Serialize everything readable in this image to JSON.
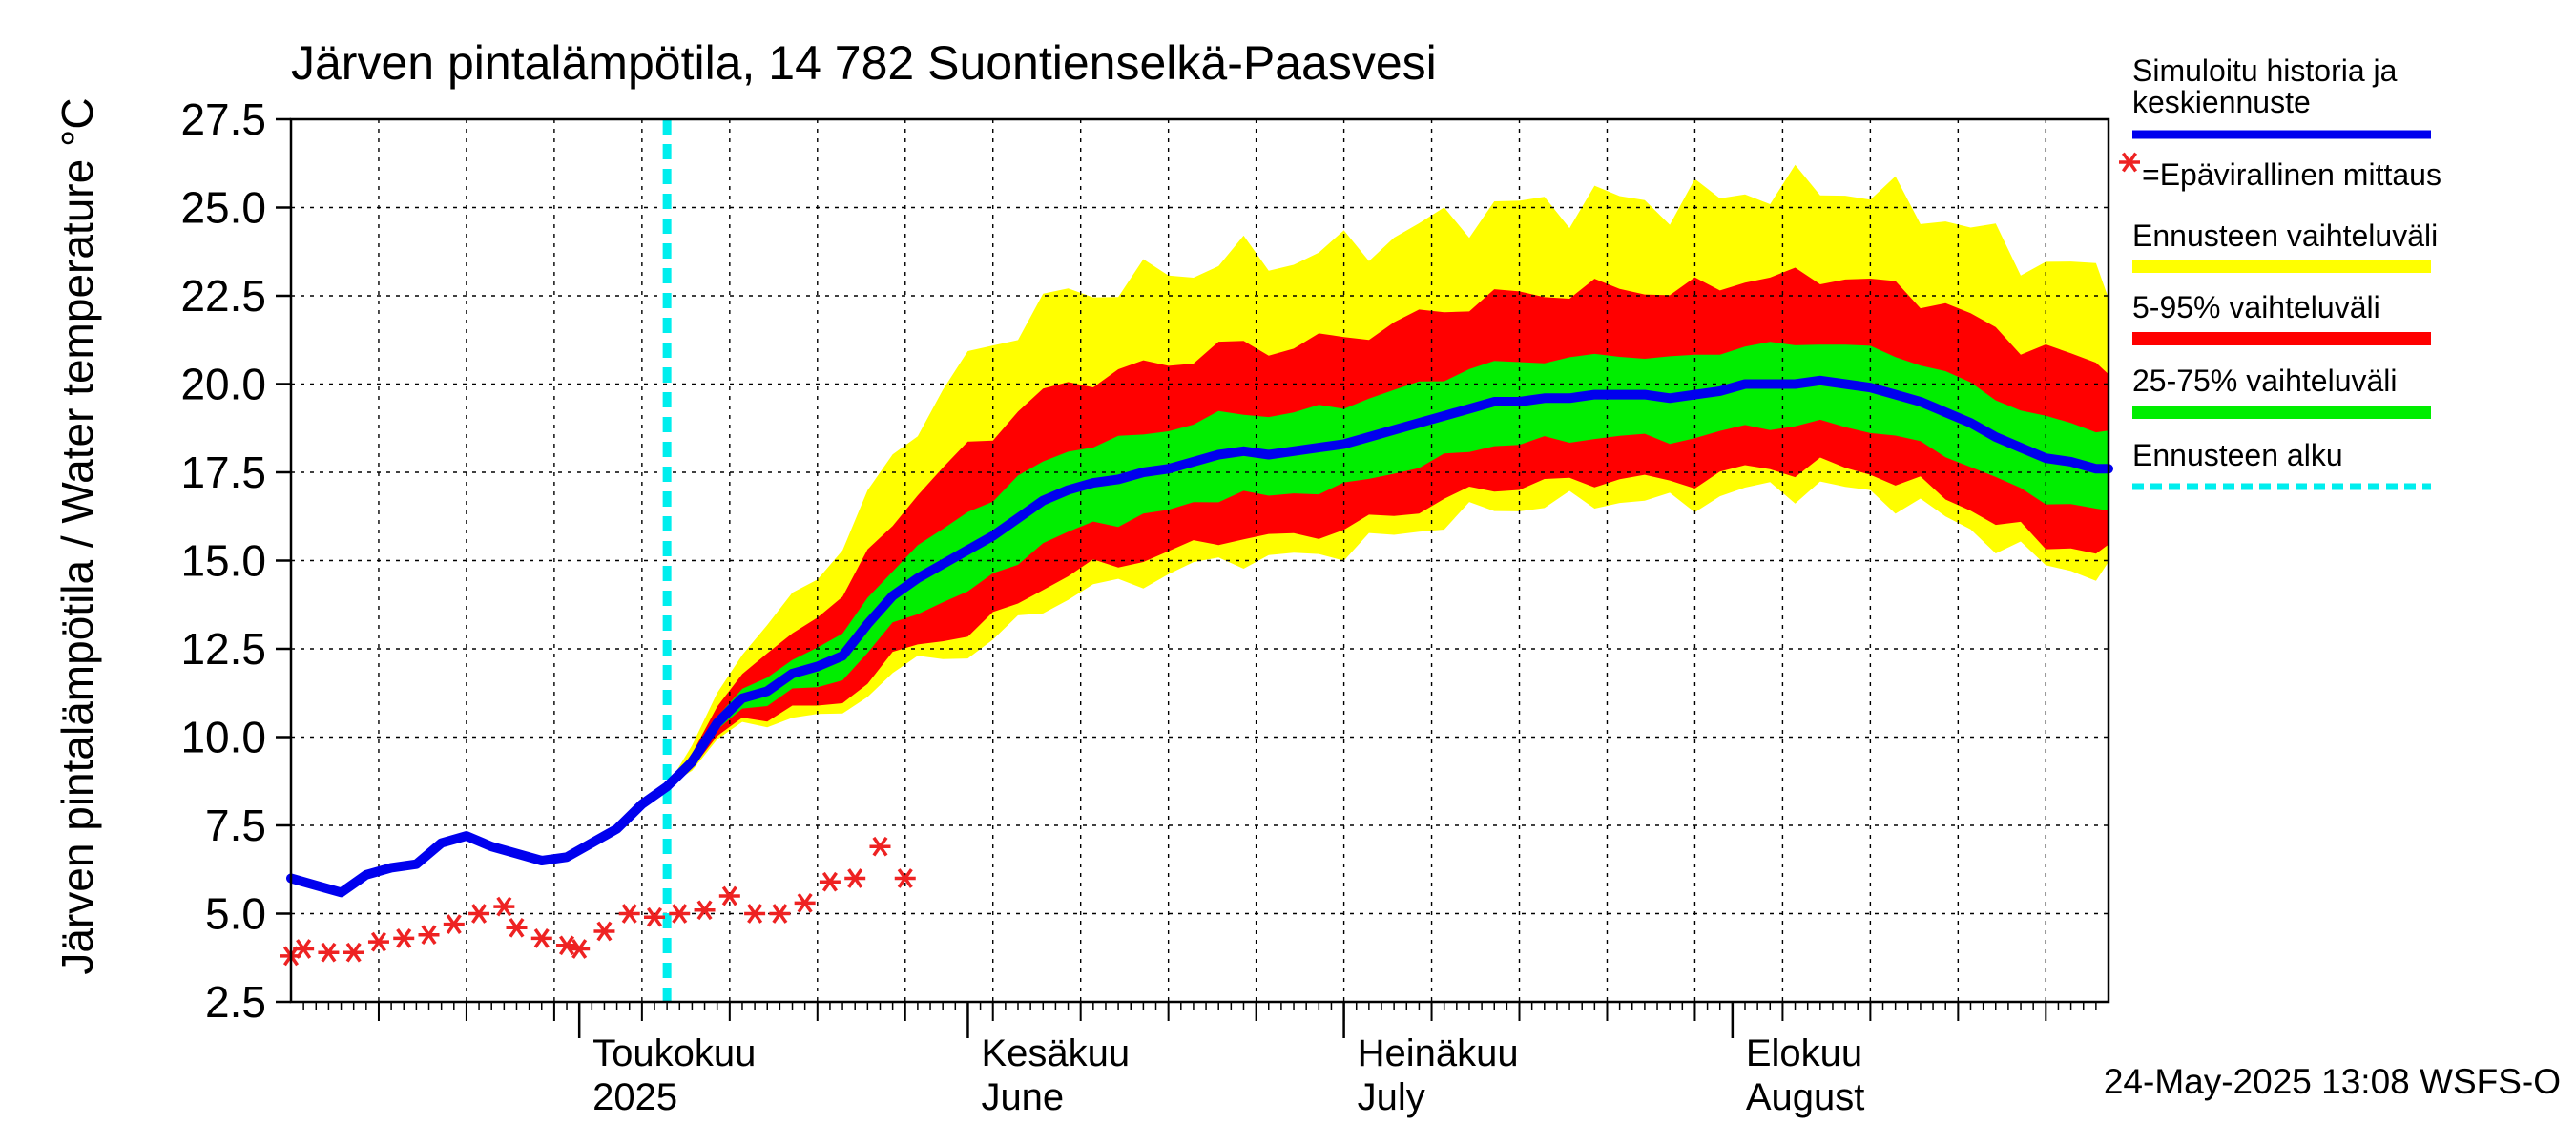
{
  "chart_data": {
    "type": "line",
    "title": "Järven pintalämpötila, 14 782 Suontienselkä-Paasvesi",
    "ylabel": "Järven pintalämpötila / Water temperature °C",
    "ylim": [
      2.5,
      27.5
    ],
    "yticks": [
      "2.5",
      "5.0",
      "7.5",
      "10.0",
      "12.5",
      "15.0",
      "17.5",
      "20.0",
      "22.5",
      "25.0",
      "27.5"
    ],
    "xlim": [
      "2025-04-08",
      "2025-08-31"
    ],
    "grid": true,
    "months": [
      {
        "date": "2025-05-01",
        "label": "Toukokuu",
        "sublabel": "2025"
      },
      {
        "date": "2025-06-01",
        "label": "Kesäkuu",
        "sublabel": "June"
      },
      {
        "date": "2025-07-01",
        "label": "Heinäkuu",
        "sublabel": "July"
      },
      {
        "date": "2025-08-01",
        "label": "Elokuu",
        "sublabel": "August"
      }
    ],
    "forecast_start": "2025-05-08",
    "legend": {
      "position": "right",
      "entries": [
        {
          "label": "Simuloitu historia ja keskiennuste",
          "line1": "Simuloitu historia ja",
          "line2": "keskiennuste",
          "color": "#0000ee"
        },
        {
          "label": "=Epävirallinen mittaus",
          "color": "#ee2222"
        },
        {
          "label": "Ennusteen vaihteluväli",
          "color": "#ffff00"
        },
        {
          "label": "5-95% vaihteluväli",
          "color": "#ff0000"
        },
        {
          "label": "25-75% vaihteluväli",
          "color": "#00ee00"
        },
        {
          "label": "Ennusteen alku",
          "color": "#00eeee"
        }
      ]
    },
    "series": [
      {
        "name": "Simuloitu historia ja keskiennuste",
        "color": "#0000ee",
        "x": [
          "2025-04-08",
          "2025-04-10",
          "2025-04-12",
          "2025-04-14",
          "2025-04-16",
          "2025-04-18",
          "2025-04-20",
          "2025-04-22",
          "2025-04-24",
          "2025-04-26",
          "2025-04-28",
          "2025-04-30",
          "2025-05-02",
          "2025-05-04",
          "2025-05-06",
          "2025-05-08",
          "2025-05-10",
          "2025-05-12",
          "2025-05-14",
          "2025-05-16",
          "2025-05-18",
          "2025-05-20",
          "2025-05-22",
          "2025-05-24",
          "2025-05-26",
          "2025-05-28",
          "2025-05-30",
          "2025-06-01",
          "2025-06-03",
          "2025-06-05",
          "2025-06-07",
          "2025-06-09",
          "2025-06-11",
          "2025-06-13",
          "2025-06-15",
          "2025-06-17",
          "2025-06-19",
          "2025-06-21",
          "2025-06-23",
          "2025-06-25",
          "2025-06-27",
          "2025-06-29",
          "2025-07-01",
          "2025-07-03",
          "2025-07-05",
          "2025-07-07",
          "2025-07-09",
          "2025-07-11",
          "2025-07-13",
          "2025-07-15",
          "2025-07-17",
          "2025-07-19",
          "2025-07-21",
          "2025-07-23",
          "2025-07-25",
          "2025-07-27",
          "2025-07-29",
          "2025-07-31",
          "2025-08-02",
          "2025-08-04",
          "2025-08-06",
          "2025-08-08",
          "2025-08-10",
          "2025-08-12",
          "2025-08-14",
          "2025-08-16",
          "2025-08-18",
          "2025-08-20",
          "2025-08-22",
          "2025-08-24",
          "2025-08-26",
          "2025-08-28",
          "2025-08-30",
          "2025-08-31"
        ],
        "values": [
          6.0,
          5.8,
          5.6,
          6.1,
          6.3,
          6.4,
          7.0,
          7.2,
          6.9,
          6.7,
          6.5,
          6.6,
          7.0,
          7.4,
          8.1,
          8.6,
          9.3,
          10.4,
          11.1,
          11.3,
          11.8,
          12.0,
          12.3,
          13.2,
          14.0,
          14.5,
          14.9,
          15.3,
          15.7,
          16.2,
          16.7,
          17.0,
          17.2,
          17.3,
          17.5,
          17.6,
          17.8,
          18.0,
          18.1,
          18.0,
          18.1,
          18.2,
          18.3,
          18.5,
          18.7,
          18.9,
          19.1,
          19.3,
          19.5,
          19.5,
          19.6,
          19.6,
          19.7,
          19.7,
          19.7,
          19.6,
          19.7,
          19.8,
          20.0,
          20.0,
          20.0,
          20.1,
          20.0,
          19.9,
          19.7,
          19.5,
          19.2,
          18.9,
          18.5,
          18.2,
          17.9,
          17.8,
          17.6,
          17.6
        ]
      },
      {
        "name": "=Epävirallinen mittaus",
        "color": "#ee2222",
        "x": [
          "2025-04-08",
          "2025-04-09",
          "2025-04-11",
          "2025-04-13",
          "2025-04-15",
          "2025-04-17",
          "2025-04-19",
          "2025-04-21",
          "2025-04-23",
          "2025-04-25",
          "2025-04-26",
          "2025-04-28",
          "2025-04-30",
          "2025-05-01",
          "2025-05-03",
          "2025-05-05",
          "2025-05-07",
          "2025-05-09",
          "2025-05-11",
          "2025-05-13",
          "2025-05-15",
          "2025-05-17",
          "2025-05-19",
          "2025-05-21",
          "2025-05-23",
          "2025-05-25",
          "2025-05-27"
        ],
        "values": [
          3.8,
          4.0,
          3.9,
          3.9,
          4.2,
          4.3,
          4.4,
          4.7,
          5.0,
          5.2,
          4.6,
          4.3,
          4.1,
          4.0,
          4.5,
          5.0,
          4.9,
          5.0,
          5.1,
          5.5,
          5.0,
          5.0,
          5.3,
          5.9,
          6.0,
          6.9,
          6.0
        ]
      }
    ]
  }
}
